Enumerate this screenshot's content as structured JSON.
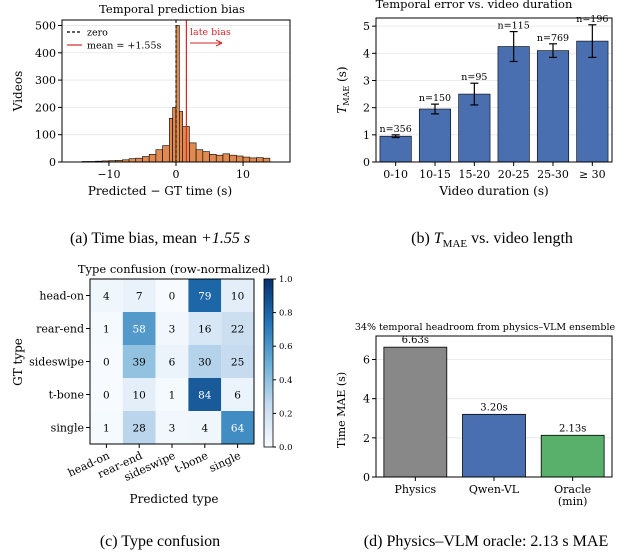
{
  "captions": {
    "a_prefix": "(a) Time bias, mean ",
    "a_math": "+1.55 s",
    "b_prefix": "(b) ",
    "b_math_main": "T",
    "b_math_sub": "MAE",
    "b_suffix": " vs. video length",
    "c": "(c) Type confusion",
    "d_prefix": "(d) Physics–VLM oracle: ",
    "d_math": "2.13 s",
    "d_suffix": " MAE"
  },
  "colors": {
    "hist": "#e08a4f",
    "blue": "#4a6fb0",
    "gray": "#888888",
    "green": "#58b06a",
    "red": "#d62728",
    "grid": "#e6e6e6"
  },
  "chart_data": [
    {
      "id": "a",
      "type": "bar",
      "title": "Temporal prediction bias",
      "xlabel": "Predicted − GT time (s)",
      "ylabel": "Videos",
      "xlim": [
        -17,
        17
      ],
      "ylim": [
        0,
        520
      ],
      "xticks": [
        -10,
        0,
        10
      ],
      "yticks": [
        0,
        100,
        200,
        300,
        400,
        500
      ],
      "bin_width": 1,
      "bins": [
        {
          "x0": -14,
          "v": 2
        },
        {
          "x0": -13,
          "v": 2
        },
        {
          "x0": -12,
          "v": 3
        },
        {
          "x0": -11,
          "v": 4
        },
        {
          "x0": -10,
          "v": 5
        },
        {
          "x0": -9,
          "v": 6
        },
        {
          "x0": -8,
          "v": 8
        },
        {
          "x0": -7,
          "v": 12
        },
        {
          "x0": -6,
          "v": 14
        },
        {
          "x0": -5,
          "v": 20
        },
        {
          "x0": -4,
          "v": 28
        },
        {
          "x0": -3,
          "v": 45
        },
        {
          "x0": -2,
          "v": 60
        },
        {
          "x0": -1,
          "v": 160
        },
        {
          "x0": -0.5,
          "v": 200
        },
        {
          "x0": 0,
          "v": 500
        },
        {
          "x0": 0.5,
          "v": 185
        },
        {
          "x0": 1,
          "v": 130
        },
        {
          "x0": 2,
          "v": 70
        },
        {
          "x0": 3,
          "v": 45
        },
        {
          "x0": 4,
          "v": 38
        },
        {
          "x0": 5,
          "v": 28
        },
        {
          "x0": 6,
          "v": 25
        },
        {
          "x0": 7,
          "v": 30
        },
        {
          "x0": 8,
          "v": 25
        },
        {
          "x0": 9,
          "v": 22
        },
        {
          "x0": 10,
          "v": 18
        },
        {
          "x0": 11,
          "v": 15
        },
        {
          "x0": 12,
          "v": 16
        },
        {
          "x0": 13,
          "v": 14
        }
      ],
      "zero_line": 0,
      "mean_line": 1.55,
      "legend": [
        "zero",
        "mean = +1.55s"
      ],
      "annotation": "late bias"
    },
    {
      "id": "b",
      "type": "bar",
      "title": "Temporal error vs. video duration",
      "xlabel": "Video duration (s)",
      "ylabel_main": "T",
      "ylabel_sub": "MAE",
      "ylabel_unit": " (s)",
      "ylim": [
        0,
        5.3
      ],
      "yticks": [
        0,
        1,
        2,
        3,
        4,
        5
      ],
      "categories": [
        "0-10",
        "10-15",
        "15-20",
        "20-25",
        "25-30",
        "≥ 30"
      ],
      "values": [
        0.95,
        1.95,
        2.5,
        4.25,
        4.1,
        4.45
      ],
      "errors": [
        0.05,
        0.18,
        0.4,
        0.55,
        0.25,
        0.6
      ],
      "labels": [
        "n=356",
        "n=150",
        "n=95",
        "n=115",
        "n=769",
        "n=196"
      ]
    },
    {
      "id": "c",
      "type": "heatmap",
      "title": "Type confusion (row-normalized)",
      "xlabel": "Predicted type",
      "ylabel": "GT type",
      "rows": [
        "head-on",
        "rear-end",
        "sideswipe",
        "t-bone",
        "single"
      ],
      "cols": [
        "head-on",
        "rear-end",
        "sideswipe",
        "t-bone",
        "single"
      ],
      "values": [
        [
          4,
          7,
          0,
          79,
          10
        ],
        [
          1,
          58,
          3,
          16,
          22
        ],
        [
          0,
          39,
          6,
          30,
          25
        ],
        [
          0,
          10,
          1,
          84,
          6
        ],
        [
          1,
          28,
          3,
          4,
          64
        ]
      ],
      "colorbar_ticks": [
        "0.0",
        "0.2",
        "0.4",
        "0.6",
        "0.8",
        "1.0"
      ]
    },
    {
      "id": "d",
      "type": "bar",
      "title": "34% temporal headroom from physics–VLM ensemble",
      "ylabel": "Time MAE (s)",
      "ylim": [
        0,
        7.2
      ],
      "yticks": [
        0,
        2,
        4,
        6
      ],
      "categories": [
        "Physics",
        "Qwen-VL",
        "Oracle"
      ],
      "category_sub": [
        "",
        "",
        "(min)"
      ],
      "values": [
        6.63,
        3.2,
        2.13
      ],
      "labels": [
        "6.63s",
        "3.20s",
        "2.13s"
      ]
    }
  ]
}
